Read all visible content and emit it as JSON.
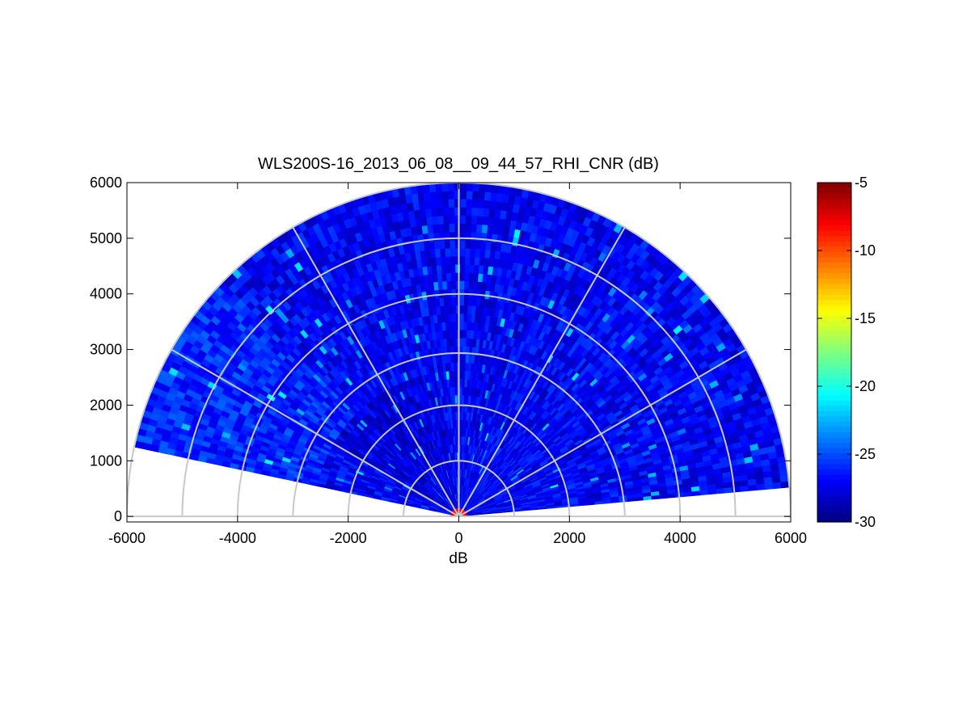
{
  "chart_data": {
    "type": "heatmap",
    "subtype": "polar-rhi-scan",
    "title": "WLS200S-16_2013_06_08__09_44_57_RHI_CNR (dB)",
    "xlabel": "dB",
    "ylabel": "",
    "xlim": [
      -6000,
      6000
    ],
    "ylim": [
      -100,
      6000
    ],
    "x_ticks": [
      -6000,
      -4000,
      -2000,
      0,
      2000,
      4000,
      6000
    ],
    "x_tick_labels": [
      "-6000",
      "-4000",
      "-2000",
      "0",
      "2000",
      "4000",
      "6000"
    ],
    "y_ticks": [
      0,
      1000,
      2000,
      3000,
      4000,
      5000,
      6000
    ],
    "y_tick_labels": [
      "0",
      "1000",
      "2000",
      "3000",
      "4000",
      "5000",
      "6000"
    ],
    "polar_grid": {
      "range_rings": [
        1000,
        2000,
        3000,
        4000,
        5000,
        6000
      ],
      "spokes_deg": [
        0,
        30,
        60,
        90,
        120,
        150,
        180
      ]
    },
    "scan": {
      "elevation_deg": [
        5,
        168
      ],
      "range_max": 6000
    },
    "colorbar": {
      "colormap": "jet",
      "range": [
        -30,
        -5
      ],
      "ticks": [
        -5,
        -10,
        -15,
        -20,
        -25,
        -30
      ],
      "tick_labels": [
        "-5",
        "-10",
        "-15",
        "-20",
        "-25",
        "-30"
      ]
    },
    "typical_value_dB": -27,
    "near_field_value_dB": -8,
    "grid": true,
    "legend": "none"
  },
  "colors": {
    "grid": "#c8c8c8",
    "axis": "#000000",
    "background": "#ffffff"
  }
}
